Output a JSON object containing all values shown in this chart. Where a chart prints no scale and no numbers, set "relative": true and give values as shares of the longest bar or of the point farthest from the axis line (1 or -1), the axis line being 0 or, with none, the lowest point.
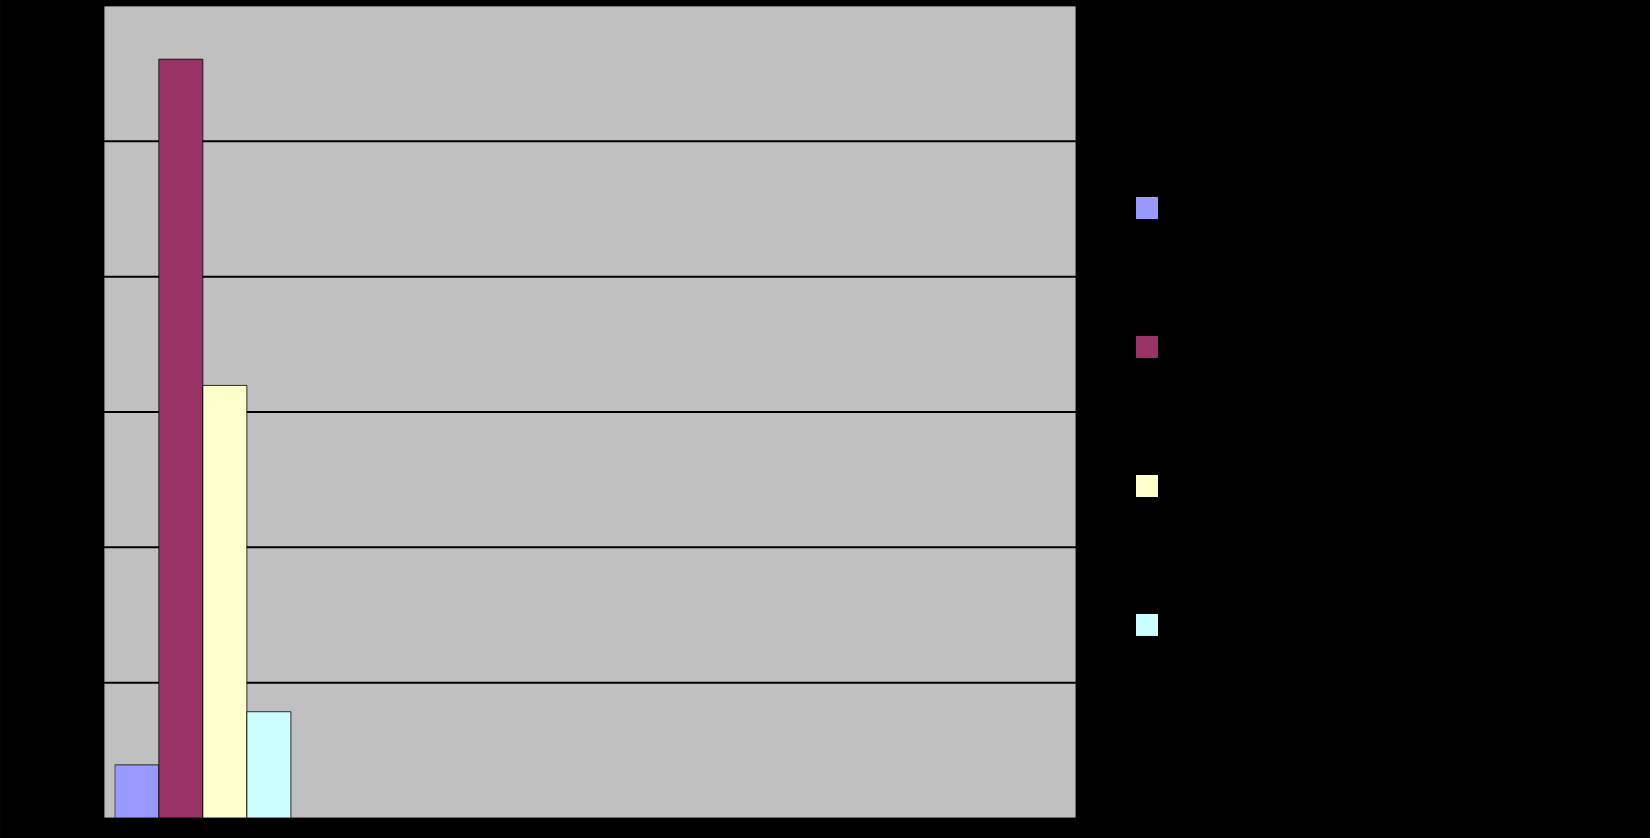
{
  "chart_data": {
    "type": "bar",
    "relative": true,
    "categories": [
      null
    ],
    "series": [
      {
        "color": "#9999ff",
        "values": [
          0.07
        ]
      },
      {
        "color": "#993366",
        "values": [
          1
        ]
      },
      {
        "color": "#ffffcc",
        "values": [
          0.57
        ]
      },
      {
        "color": "#ccffff",
        "values": [
          0.14
        ]
      }
    ],
    "grid": "y"
  }
}
